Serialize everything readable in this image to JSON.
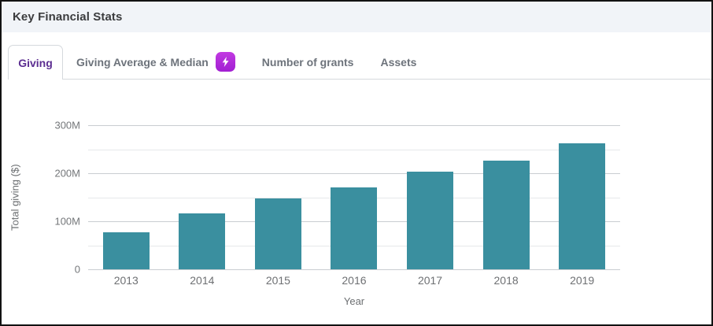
{
  "window": {
    "title": "Key Financial Stats"
  },
  "tabs": [
    {
      "label": "Giving",
      "active": true
    },
    {
      "label": "Giving Average & Median",
      "active": false,
      "badge": "lightning-bolt"
    },
    {
      "label": "Number of grants",
      "active": false
    },
    {
      "label": "Assets",
      "active": false
    }
  ],
  "chart_data": {
    "type": "bar",
    "categories": [
      "2013",
      "2014",
      "2015",
      "2016",
      "2017",
      "2018",
      "2019"
    ],
    "values": [
      77,
      116,
      148,
      170,
      204,
      227,
      262
    ],
    "value_unit": "M",
    "title": "",
    "xlabel": "Year",
    "ylabel": "Total giving ($)",
    "ylim": [
      0,
      300
    ],
    "ytick_labels": [
      "300M",
      "200M",
      "100M",
      "0"
    ],
    "grid": true,
    "legend": false,
    "bar_color": "#3a8f9f"
  },
  "colors": {
    "accent_purple": "#5c2e91",
    "badge_purple": "#b02bdb",
    "bar_teal": "#3a8f9f",
    "header_bg": "#f1f4f8",
    "tab_inactive_text": "#6d737b",
    "divider": "#d5d9dd"
  }
}
